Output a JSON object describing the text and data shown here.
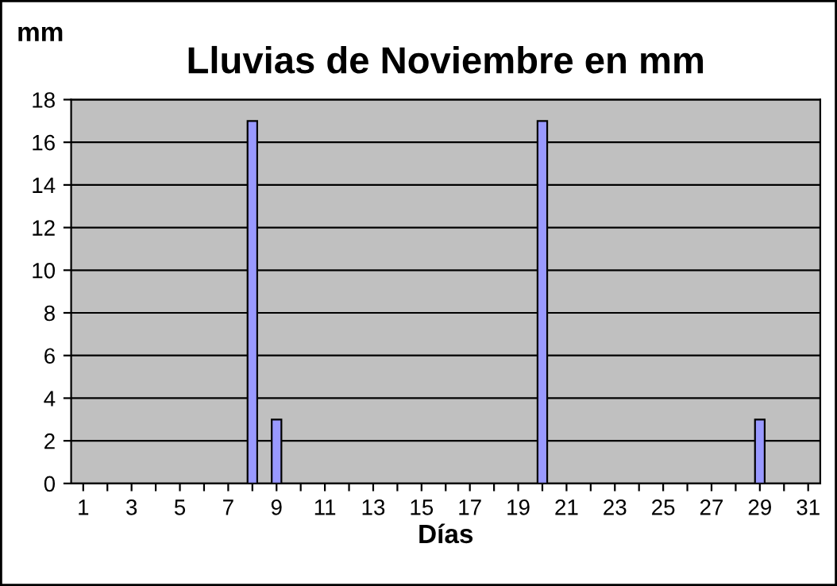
{
  "chart_data": {
    "type": "bar",
    "title": "Lluvias de Noviembre en mm",
    "xlabel": "Días",
    "ylabel": "mm",
    "categories": [
      "1",
      null,
      "3",
      null,
      "5",
      null,
      "7",
      null,
      "9",
      null,
      "11",
      null,
      "13",
      null,
      "15",
      null,
      "17",
      null,
      "19",
      null,
      "21",
      null,
      "23",
      null,
      "25",
      null,
      "27",
      null,
      "29",
      null,
      "31"
    ],
    "values": [
      0,
      0,
      0,
      0,
      0,
      0,
      0,
      17,
      3,
      0,
      0,
      0,
      0,
      0,
      0,
      0,
      0,
      0,
      0,
      17,
      0,
      0,
      0,
      0,
      0,
      0,
      0,
      0,
      3,
      0,
      0
    ],
    "color": "#9999ff",
    "ylim": [
      0,
      18
    ],
    "yticks": [
      0,
      2,
      4,
      6,
      8,
      10,
      12,
      14,
      16,
      18
    ],
    "grid": "y",
    "legend": false
  }
}
